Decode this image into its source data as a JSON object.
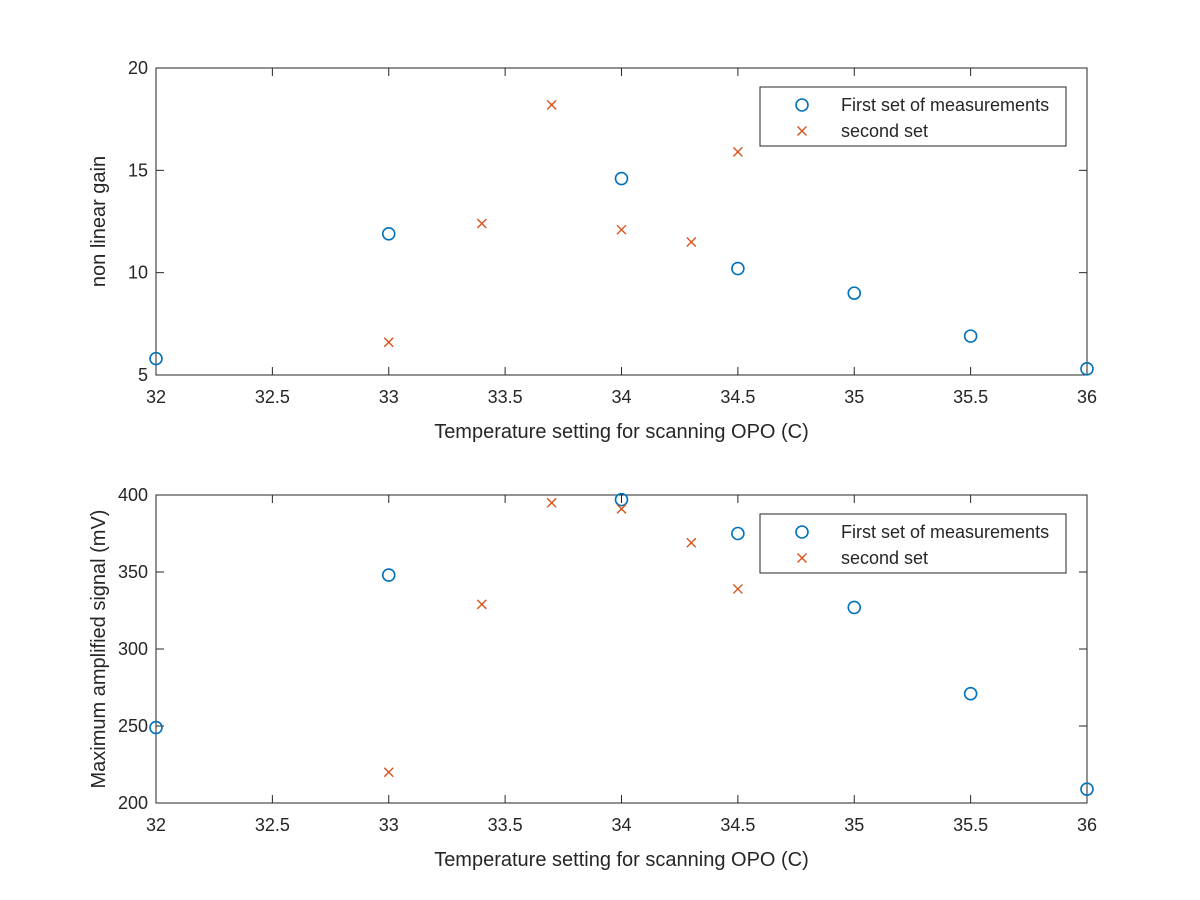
{
  "colors": {
    "series_1": "#0072BD",
    "series_2": "#D95319",
    "axes": "#262626",
    "background": "#ffffff"
  },
  "chart_data": [
    {
      "type": "scatter",
      "title": "",
      "xlabel": "Temperature setting for scanning OPO (C)",
      "ylabel": "non linear gain",
      "xlim": [
        32,
        36
      ],
      "ylim": [
        5,
        20
      ],
      "xticks": [
        "32",
        "32.5",
        "33",
        "33.5",
        "34",
        "34.5",
        "35",
        "35.5",
        "36"
      ],
      "yticks": [
        "5",
        "10",
        "15",
        "20"
      ],
      "grid": false,
      "legend_position": "top-right",
      "series": [
        {
          "name": "First set of measurements",
          "marker": "circle",
          "x": [
            32,
            33,
            34,
            34.5,
            35,
            35.5,
            36
          ],
          "y": [
            5.8,
            11.9,
            14.6,
            10.2,
            9.0,
            6.9,
            5.3
          ]
        },
        {
          "name": "second set",
          "marker": "cross",
          "x": [
            33,
            33.4,
            33.7,
            34,
            34.3,
            34.5
          ],
          "y": [
            6.6,
            12.4,
            18.2,
            12.1,
            11.5,
            15.9
          ]
        }
      ]
    },
    {
      "type": "scatter",
      "title": "",
      "xlabel": "Temperature setting for scanning OPO (C)",
      "ylabel": "Maximum amplified signal (mV)",
      "xlim": [
        32,
        36
      ],
      "ylim": [
        200,
        400
      ],
      "xticks": [
        "32",
        "32.5",
        "33",
        "33.5",
        "34",
        "34.5",
        "35",
        "35.5",
        "36"
      ],
      "yticks": [
        "200",
        "250",
        "300",
        "350",
        "400"
      ],
      "grid": false,
      "legend_position": "top-right",
      "series": [
        {
          "name": "First set of measurements",
          "marker": "circle",
          "x": [
            32,
            33,
            34,
            34.5,
            35,
            35.5,
            36
          ],
          "y": [
            249,
            348,
            397,
            375,
            327,
            271,
            209
          ]
        },
        {
          "name": "second set",
          "marker": "cross",
          "x": [
            33,
            33.4,
            33.7,
            34,
            34.3,
            34.5
          ],
          "y": [
            220,
            329,
            395,
            391,
            369,
            339
          ]
        }
      ]
    }
  ]
}
